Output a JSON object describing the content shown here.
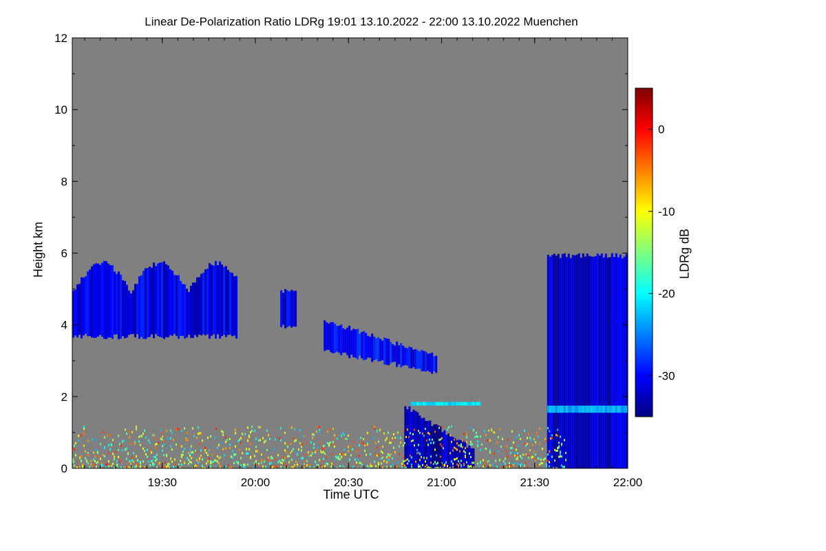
{
  "chart_data": {
    "type": "heatmap",
    "title": "Linear De-Polarization Ratio LDRg   19:01 13.10.2022 - 22:00 13.10.2022 Muenchen",
    "xlabel": "Time UTC",
    "ylabel": "Height km",
    "colorbar_label": "LDRg dB",
    "x_range_minutes_utc": [
      1141,
      1320
    ],
    "x_ticks": [
      {
        "minutes": 1170,
        "label": "19:30"
      },
      {
        "minutes": 1200,
        "label": "20:00"
      },
      {
        "minutes": 1230,
        "label": "20:30"
      },
      {
        "minutes": 1260,
        "label": "21:00"
      },
      {
        "minutes": 1290,
        "label": "21:30"
      },
      {
        "minutes": 1320,
        "label": "22:00"
      }
    ],
    "ylim": [
      0,
      12
    ],
    "y_ticks": [
      {
        "value": 0,
        "label": "0"
      },
      {
        "value": 2,
        "label": "2"
      },
      {
        "value": 4,
        "label": "4"
      },
      {
        "value": 6,
        "label": "6"
      },
      {
        "value": 8,
        "label": "8"
      },
      {
        "value": 10,
        "label": "10"
      },
      {
        "value": 12,
        "label": "12"
      }
    ],
    "colorbar_range_db": [
      -35,
      5
    ],
    "colorbar_ticks": [
      {
        "value": 0,
        "label": "0"
      },
      {
        "value": -10,
        "label": "-10"
      },
      {
        "value": -20,
        "label": "-20"
      },
      {
        "value": -30,
        "label": "-30"
      }
    ],
    "background_color": "#808080",
    "colormap": [
      "#00007f",
      "#0000ff",
      "#007fff",
      "#00ffff",
      "#7fff7f",
      "#ffff00",
      "#ff7f00",
      "#ff0000",
      "#7f0000"
    ],
    "features": [
      {
        "name": "mid-level cloud layer",
        "t_start": 1141,
        "t_end": 1194,
        "h_bottom": 3.6,
        "h_top": 5.6,
        "ldr_db": -31
      },
      {
        "name": "cloud fragment",
        "t_start": 1208,
        "t_end": 1213,
        "h_bottom": 3.9,
        "h_top": 5.0,
        "ldr_db": -31
      },
      {
        "name": "descending cloud",
        "t_start": 1222,
        "t_end": 1258,
        "h_bottom": 2.6,
        "h_top": 4.2,
        "ldr_db": -30
      },
      {
        "name": "precipitation fall streak",
        "t_start": 1248,
        "t_end": 1270,
        "h_bottom": 0.0,
        "h_top": 1.8,
        "ldr_db": -33
      },
      {
        "name": "melting layer band",
        "t_start": 1250,
        "t_end": 1272,
        "h_bottom": 1.7,
        "h_top": 1.9,
        "ldr_db": -21
      },
      {
        "name": "late thick cloud",
        "t_start": 1294,
        "t_end": 1320,
        "h_bottom": 0.0,
        "h_top": 6.0,
        "ldr_db": -32
      },
      {
        "name": "late melting layer band",
        "t_start": 1294,
        "t_end": 1320,
        "h_bottom": 1.5,
        "h_top": 1.8,
        "ldr_db": -23
      },
      {
        "name": "near-surface aerosol noise",
        "t_start": 1141,
        "t_end": 1300,
        "h_bottom": 0.0,
        "h_top": 1.2,
        "ldr_db": -5
      }
    ]
  }
}
